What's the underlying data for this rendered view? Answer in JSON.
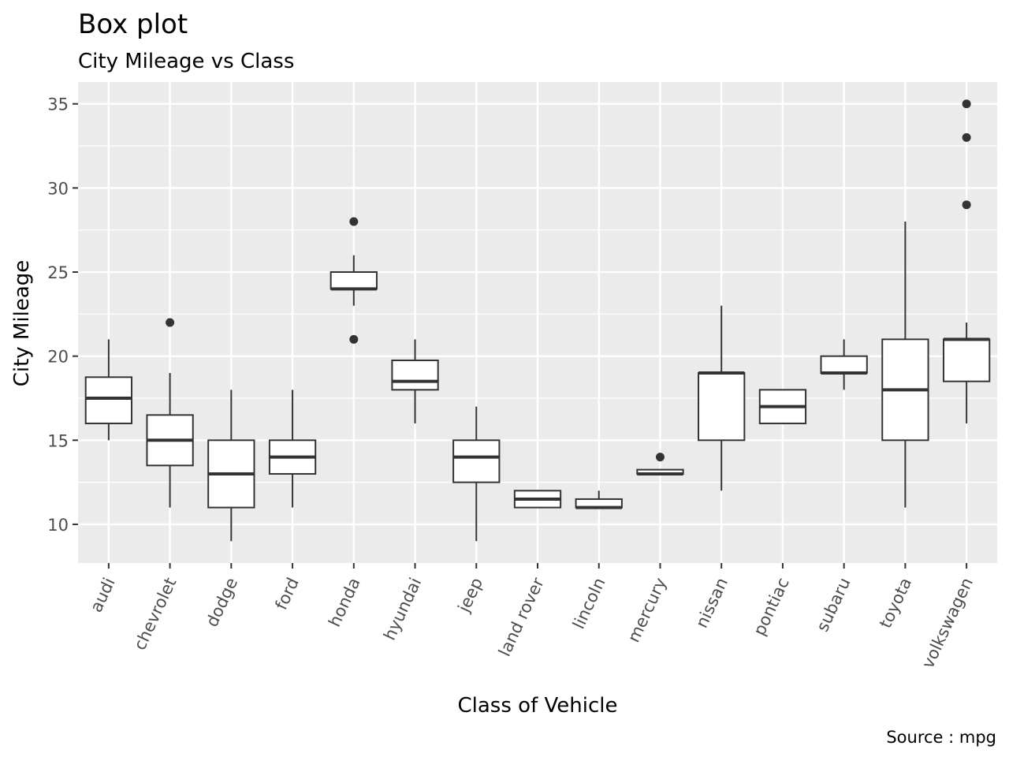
{
  "chart_data": {
    "type": "box",
    "title": "Box plot",
    "subtitle": "City Mileage vs Class",
    "xlabel": "Class of Vehicle",
    "ylabel": "City Mileage",
    "caption": "Source : mpg",
    "ylim": [
      7.7,
      36.3
    ],
    "yticks": [
      10,
      15,
      20,
      25,
      30,
      35
    ],
    "yticklabels": [
      "10",
      "15",
      "20",
      "25",
      "30",
      "35"
    ],
    "grid": true,
    "colors": {
      "panel": "#ebebeb",
      "grid": "#ffffff",
      "box_fill": "#ffffff",
      "box_line": "#333333",
      "outlier": "#333333"
    },
    "categories": [
      "audi",
      "chevrolet",
      "dodge",
      "ford",
      "honda",
      "hyundai",
      "jeep",
      "land rover",
      "lincoln",
      "mercury",
      "nissan",
      "pontiac",
      "subaru",
      "toyota",
      "volkswagen"
    ],
    "boxes": [
      {
        "min": 15,
        "q1": 16,
        "median": 17.5,
        "q3": 18.75,
        "max": 21,
        "outliers": []
      },
      {
        "min": 11,
        "q1": 13.5,
        "median": 15,
        "q3": 16.5,
        "max": 19,
        "outliers": [
          22
        ]
      },
      {
        "min": 9,
        "q1": 11,
        "median": 13,
        "q3": 15,
        "max": 18,
        "outliers": []
      },
      {
        "min": 11,
        "q1": 13,
        "median": 14,
        "q3": 15,
        "max": 18,
        "outliers": []
      },
      {
        "min": 23,
        "q1": 24,
        "median": 24,
        "q3": 25,
        "max": 26,
        "outliers": [
          28,
          21
        ]
      },
      {
        "min": 16,
        "q1": 18,
        "median": 18.5,
        "q3": 19.75,
        "max": 21,
        "outliers": []
      },
      {
        "min": 9,
        "q1": 12.5,
        "median": 14,
        "q3": 15,
        "max": 17,
        "outliers": []
      },
      {
        "min": 11,
        "q1": 11,
        "median": 11.5,
        "q3": 12,
        "max": 12,
        "outliers": []
      },
      {
        "min": 11,
        "q1": 11,
        "median": 11,
        "q3": 11.5,
        "max": 12,
        "outliers": []
      },
      {
        "min": 13,
        "q1": 13,
        "median": 13,
        "q3": 13.25,
        "max": 13.25,
        "outliers": [
          14
        ]
      },
      {
        "min": 12,
        "q1": 15,
        "median": 19,
        "q3": 19,
        "max": 23,
        "outliers": []
      },
      {
        "min": 16,
        "q1": 16,
        "median": 17,
        "q3": 18,
        "max": 18,
        "outliers": []
      },
      {
        "min": 18,
        "q1": 19,
        "median": 19,
        "q3": 20,
        "max": 21,
        "outliers": []
      },
      {
        "min": 11,
        "q1": 15,
        "median": 18,
        "q3": 21,
        "max": 28,
        "outliers": []
      },
      {
        "min": 16,
        "q1": 18.5,
        "median": 21,
        "q3": 21,
        "max": 22,
        "outliers": [
          35,
          33,
          29
        ]
      }
    ]
  }
}
